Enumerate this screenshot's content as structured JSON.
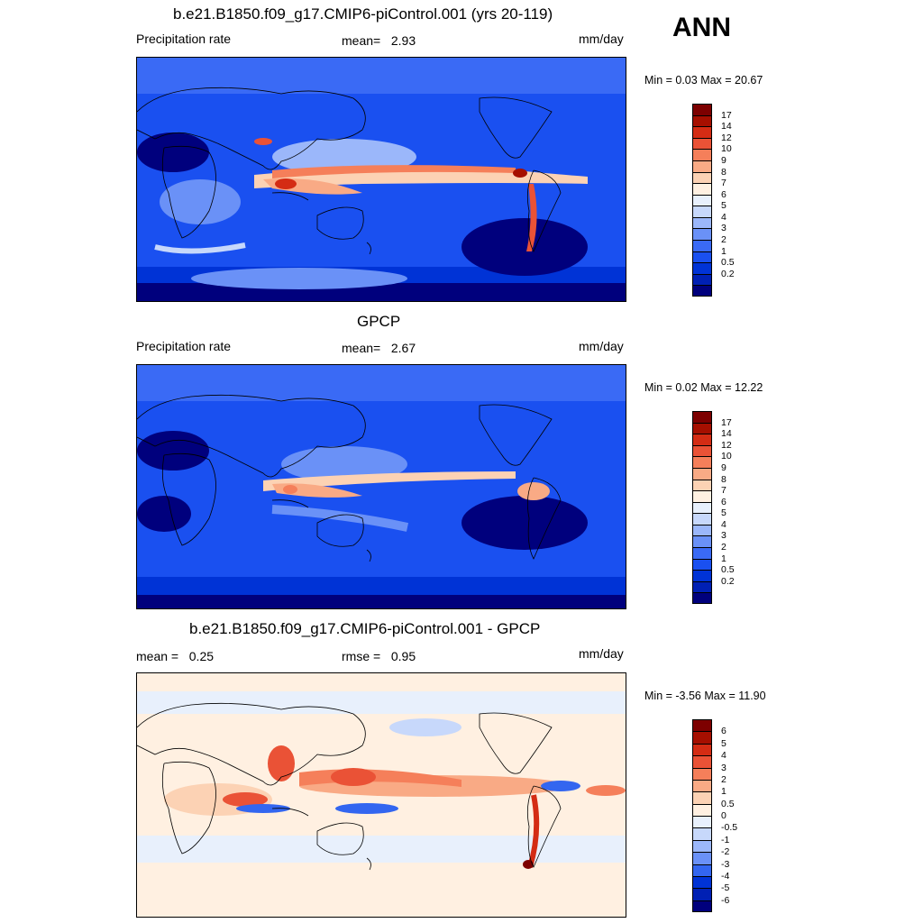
{
  "season": "ANN",
  "palette_precip": [
    "#00007d",
    "#0020b4",
    "#0033d6",
    "#1a50f0",
    "#3a6af5",
    "#6a91f7",
    "#9bb7fa",
    "#c7d8fb",
    "#e8f0fc",
    "#fff0e1",
    "#fcd2b4",
    "#f9aa85",
    "#f57f5a",
    "#ea5236",
    "#d42c14",
    "#a60f00",
    "#7d0000"
  ],
  "palette_diff": [
    "#00007d",
    "#0020b4",
    "#0033d6",
    "#3366f0",
    "#6a91f7",
    "#9bb7fa",
    "#c7d8fb",
    "#e8f0fc",
    "#fff0e1",
    "#fcd2b4",
    "#f9aa85",
    "#f57f5a",
    "#ea5236",
    "#d42c14",
    "#a60f00",
    "#7d0000"
  ],
  "panels": [
    {
      "id": "model",
      "title": "b.e21.B1850.f09_g17.CMIP6-piControl.001 (yrs 20-119)",
      "left_label": "Precipitation rate",
      "mid_label": "mean=",
      "mid_value": "2.93",
      "right_label": "mm/day",
      "minmax": "Min =   0.03 Max =  20.67",
      "levels": [
        "17",
        "14",
        "12",
        "10",
        "9",
        "8",
        "7",
        "6",
        "5",
        "4",
        "3",
        "2",
        "1",
        "0.5",
        "0.2"
      ]
    },
    {
      "id": "obs",
      "title": "GPCP",
      "left_label": "Precipitation rate",
      "mid_label": "mean=",
      "mid_value": "2.67",
      "right_label": "mm/day",
      "minmax": "Min =   0.02 Max =  12.22",
      "levels": [
        "17",
        "14",
        "12",
        "10",
        "9",
        "8",
        "7",
        "6",
        "5",
        "4",
        "3",
        "2",
        "1",
        "0.5",
        "0.2"
      ]
    },
    {
      "id": "diff",
      "title": "b.e21.B1850.f09_g17.CMIP6-piControl.001 - GPCP",
      "left_label": "mean =",
      "left_value": "0.25",
      "mid_label": "rmse =",
      "mid_value": "0.95",
      "right_label": "mm/day",
      "minmax": "Min =  -3.56 Max =  11.90",
      "levels": [
        "6",
        "5",
        "4",
        "3",
        "2",
        "1",
        "0.5",
        "0",
        "-0.5",
        "-1",
        "-2",
        "-3",
        "-4",
        "-5",
        "-6"
      ]
    }
  ]
}
